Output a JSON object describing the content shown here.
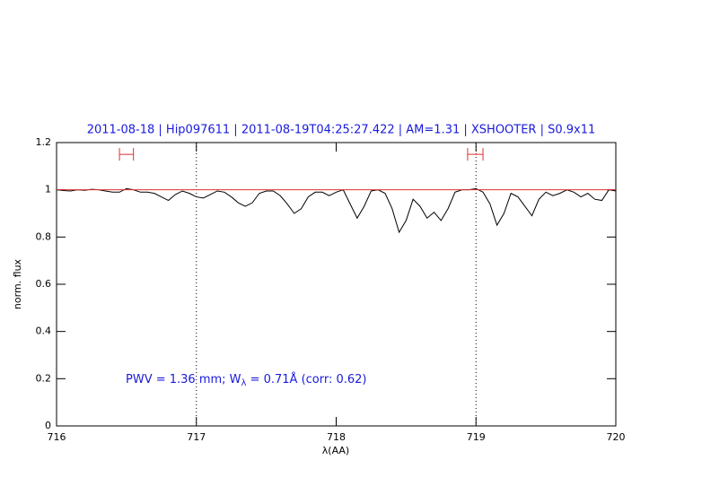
{
  "chart_data": {
    "type": "line",
    "title": "2011-08-18 | Hip097611 | 2011-08-19T04:25:27.422 | AM=1.31 | XSHOOTER | S0.9x11",
    "xlabel": "λ(AA)",
    "ylabel": "norm. flux",
    "annotation": [
      "PWV = 1.36 mm; W",
      "λ",
      " = 0.71Å (corr: 0.62)"
    ],
    "xlim": [
      716,
      720
    ],
    "ylim": [
      0,
      1.2
    ],
    "xticks": [
      716,
      717,
      718,
      719,
      720
    ],
    "yticks": [
      0,
      0.2,
      0.4,
      0.6,
      0.8,
      1,
      1.2
    ],
    "vlines": [
      717,
      719
    ],
    "ranges": [
      {
        "x": [
          716.45,
          716.55
        ],
        "y": 1.15,
        "color": "#e03030"
      },
      {
        "x": [
          718.94,
          719.05
        ],
        "y": 1.15,
        "color": "#e03030"
      }
    ],
    "series": [
      {
        "color": "#000000",
        "x": [
          716.0,
          716.05,
          716.1,
          716.15,
          716.2,
          716.25,
          716.3,
          716.35,
          716.4,
          716.45,
          716.5,
          716.55,
          716.6,
          716.65,
          716.7,
          716.75,
          716.8,
          716.85,
          716.9,
          716.95,
          717.0,
          717.05,
          717.1,
          717.15,
          717.2,
          717.25,
          717.3,
          717.35,
          717.4,
          717.45,
          717.5,
          717.55,
          717.6,
          717.65,
          717.7,
          717.75,
          717.8,
          717.85,
          717.9,
          717.95,
          718.0,
          718.05,
          718.1,
          718.15,
          718.2,
          718.25,
          718.3,
          718.35,
          718.4,
          718.45,
          718.5,
          718.55,
          718.6,
          718.65,
          718.7,
          718.75,
          718.8,
          718.85,
          718.9,
          718.95,
          719.0,
          719.05,
          719.1,
          719.15,
          719.2,
          719.25,
          719.3,
          719.35,
          719.4,
          719.45,
          719.5,
          719.55,
          719.6,
          719.65,
          719.7,
          719.75,
          719.8,
          719.85,
          719.9,
          719.95,
          720.0
        ],
        "values": [
          1.0,
          0.997,
          0.995,
          1.0,
          0.998,
          1.002,
          1.0,
          0.995,
          0.99,
          0.99,
          1.005,
          1.0,
          0.99,
          0.99,
          0.985,
          0.97,
          0.955,
          0.98,
          0.995,
          0.985,
          0.97,
          0.965,
          0.98,
          0.995,
          0.99,
          0.97,
          0.945,
          0.93,
          0.945,
          0.985,
          0.995,
          0.995,
          0.975,
          0.94,
          0.9,
          0.92,
          0.97,
          0.99,
          0.99,
          0.975,
          0.99,
          1.0,
          0.94,
          0.88,
          0.93,
          0.995,
          1.0,
          0.985,
          0.92,
          0.82,
          0.87,
          0.96,
          0.93,
          0.88,
          0.905,
          0.87,
          0.92,
          0.99,
          1.0,
          1.0,
          1.005,
          0.99,
          0.94,
          0.85,
          0.9,
          0.985,
          0.97,
          0.93,
          0.89,
          0.96,
          0.99,
          0.975,
          0.985,
          1.0,
          0.99,
          0.97,
          0.985,
          0.96,
          0.955,
          1.0,
          0.995
        ]
      },
      {
        "color": "#e03030",
        "x": [
          716,
          720
        ],
        "values": [
          1,
          1
        ]
      }
    ]
  }
}
